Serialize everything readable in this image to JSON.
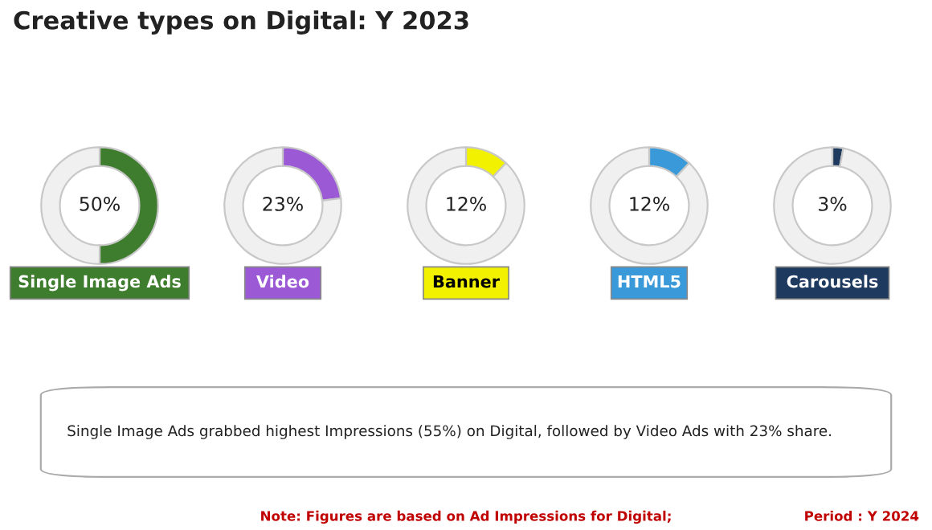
{
  "chart_data": [
    {
      "type": "donut",
      "title": "Single Image Ads",
      "categories": [
        null,
        null
      ],
      "values": [
        50,
        50
      ],
      "colors": [
        "#3f7d2e",
        "#f0f0f0"
      ],
      "value_labels": [
        "50%",
        null
      ]
    },
    {
      "type": "donut",
      "title": "Video",
      "categories": [
        null,
        null
      ],
      "values": [
        23,
        77
      ],
      "colors": [
        "#9b59d6",
        "#f0f0f0"
      ],
      "value_labels": [
        "23%",
        null
      ]
    },
    {
      "type": "donut",
      "title": "Banner",
      "categories": [
        null,
        null
      ],
      "values": [
        12,
        88
      ],
      "colors": [
        "#f2f200",
        "#f0f0f0"
      ],
      "value_labels": [
        "12%",
        null
      ]
    },
    {
      "type": "donut",
      "title": "HTML5",
      "categories": [
        null,
        null
      ],
      "values": [
        12,
        88
      ],
      "colors": [
        "#3a9ad9",
        "#f0f0f0"
      ],
      "value_labels": [
        "12%",
        null
      ]
    },
    {
      "type": "donut",
      "title": "Carousels",
      "categories": [
        null,
        null
      ],
      "values": [
        3,
        97
      ],
      "colors": [
        "#1f3a5f",
        "#f0f0f0"
      ],
      "value_labels": [
        "3%",
        null
      ]
    },
    {
      "type": "other",
      "title": "Creative types on Digital: Y 2023",
      "annotations": [
        "Single Image Ads grabbed highest Impressions (55%) on Digital, followed by Video Ads with 23% share.",
        "Note: Figures are based on Ad Impressions for Digital;",
        "Period : Y 2024"
      ]
    }
  ]
}
